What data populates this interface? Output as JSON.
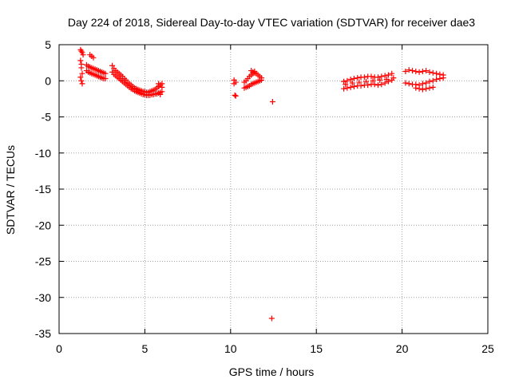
{
  "chart_data": {
    "type": "scatter",
    "title": "Day 224 of 2018, Sidereal Day-to-day VTEC variation (SDTVAR) for receiver dae3",
    "xlabel": "GPS time / hours",
    "ylabel": "SDTVAR / TECUs",
    "xlim": [
      0,
      25
    ],
    "ylim": [
      -35,
      5
    ],
    "xticks": [
      0,
      5,
      10,
      15,
      20,
      25
    ],
    "yticks": [
      5,
      0,
      -5,
      -10,
      -15,
      -20,
      -25,
      -30,
      -35
    ],
    "grid": true,
    "marker": "+",
    "color": "#ff0000",
    "series": [
      {
        "x": [
          1.25,
          1.3,
          1.35,
          1.4,
          1.25,
          1.3,
          1.3,
          1.35,
          1.25,
          1.3,
          1.35,
          1.8,
          1.9,
          2.0,
          1.6,
          1.7,
          1.8,
          1.9,
          2.0,
          2.1,
          2.2,
          2.3,
          2.4,
          2.5,
          2.6,
          2.7,
          1.6,
          1.7,
          1.8,
          1.9,
          2.0,
          2.1,
          2.2,
          2.3,
          2.4,
          2.5,
          2.6,
          2.7,
          3.1,
          3.2,
          3.3,
          3.4,
          3.5,
          3.6,
          3.7,
          3.8,
          3.9,
          4.0,
          4.1,
          4.2,
          4.3,
          4.4,
          4.5,
          4.6,
          4.7,
          4.8,
          4.9,
          5.0,
          5.1,
          5.2,
          5.3,
          5.4,
          5.5,
          5.6,
          5.7,
          5.8,
          5.9,
          6.0,
          3.1,
          3.2,
          3.3,
          3.4,
          3.5,
          3.6,
          3.7,
          3.8,
          3.9,
          4.0,
          4.1,
          4.2,
          4.3,
          4.4,
          4.5,
          4.6,
          4.7,
          4.8,
          4.9,
          5.0,
          5.1,
          5.2,
          5.3,
          5.4,
          5.5,
          5.6,
          5.7,
          5.8,
          5.9,
          6.0,
          5.8,
          5.9,
          6.0,
          5.9,
          10.2,
          10.3,
          10.2,
          10.25,
          10.3,
          10.8,
          10.9,
          11.0,
          11.1,
          11.2,
          11.3,
          11.4,
          11.5,
          11.6,
          11.7,
          11.8,
          10.8,
          10.9,
          11.0,
          11.1,
          11.2,
          11.3,
          11.4,
          11.5,
          11.6,
          11.7,
          11.8,
          11.2,
          11.3,
          11.4,
          12.45,
          12.4,
          16.6,
          16.8,
          17.0,
          17.2,
          17.4,
          17.6,
          17.8,
          18.0,
          18.2,
          18.4,
          18.6,
          18.8,
          19.0,
          19.2,
          19.4,
          16.6,
          16.8,
          17.0,
          17.2,
          17.4,
          17.6,
          17.8,
          18.0,
          18.2,
          18.4,
          18.6,
          18.8,
          19.0,
          19.2,
          19.4,
          16.7,
          17.1,
          17.5,
          17.9,
          18.3,
          18.7,
          19.1,
          19.5,
          20.2,
          20.4,
          20.6,
          20.8,
          21.0,
          21.2,
          21.4,
          21.6,
          21.8,
          22.0,
          22.2,
          22.4,
          20.2,
          20.4,
          20.6,
          20.8,
          21.0,
          21.2,
          21.4,
          21.6,
          21.8,
          22.0,
          22.2,
          22.4,
          20.8,
          21.0,
          21.2,
          21.4,
          21.6,
          21.8
        ],
        "y": [
          4.3,
          4.1,
          3.9,
          3.6,
          2.8,
          2.3,
          1.8,
          1.0,
          0.5,
          0.0,
          -0.4,
          3.6,
          3.4,
          3.2,
          2.2,
          2.0,
          1.9,
          1.8,
          1.7,
          1.6,
          1.5,
          1.4,
          1.3,
          1.2,
          1.1,
          1.0,
          1.4,
          1.2,
          1.1,
          1.0,
          0.9,
          0.8,
          0.7,
          0.6,
          0.5,
          0.4,
          0.3,
          0.3,
          2.1,
          1.7,
          1.4,
          1.2,
          1.0,
          0.8,
          0.6,
          0.3,
          0.1,
          -0.2,
          -0.4,
          -0.6,
          -0.8,
          -1.0,
          -1.1,
          -1.2,
          -1.3,
          -1.4,
          -1.5,
          -1.5,
          -1.6,
          -1.6,
          -1.5,
          -1.4,
          -1.3,
          -1.2,
          -1.0,
          -0.8,
          -0.6,
          -0.4,
          1.2,
          0.9,
          0.7,
          0.5,
          0.3,
          0.1,
          -0.1,
          -0.3,
          -0.5,
          -0.7,
          -0.9,
          -1.1,
          -1.2,
          -1.4,
          -1.5,
          -1.6,
          -1.7,
          -1.8,
          -1.9,
          -1.9,
          -2.0,
          -2.0,
          -2.0,
          -1.9,
          -1.9,
          -1.8,
          -1.8,
          -1.7,
          -1.6,
          -1.5,
          -0.4,
          -0.6,
          -0.9,
          -1.9,
          0.1,
          -0.2,
          -0.4,
          -2.0,
          -2.1,
          -0.2,
          0.0,
          0.3,
          0.6,
          0.8,
          1.0,
          1.1,
          1.0,
          0.8,
          0.6,
          0.4,
          -1.0,
          -0.9,
          -0.8,
          -0.7,
          -0.5,
          -0.4,
          -0.3,
          -0.2,
          -0.1,
          0.0,
          0.1,
          1.4,
          1.2,
          1.3,
          -2.9,
          -32.9,
          -0.1,
          0.0,
          0.2,
          0.3,
          0.4,
          0.5,
          0.5,
          0.6,
          0.6,
          0.5,
          0.5,
          0.6,
          0.7,
          0.8,
          1.0,
          -1.1,
          -1.0,
          -0.9,
          -0.8,
          -0.7,
          -0.7,
          -0.6,
          -0.6,
          -0.5,
          -0.5,
          -0.6,
          -0.5,
          -0.3,
          -0.1,
          0.1,
          -0.5,
          -0.3,
          -0.2,
          -0.1,
          0.0,
          0.1,
          0.2,
          0.4,
          1.3,
          1.5,
          1.4,
          1.3,
          1.2,
          1.3,
          1.4,
          1.2,
          1.1,
          1.0,
          0.9,
          0.8,
          -0.3,
          -0.4,
          -0.5,
          -0.5,
          -0.6,
          -0.4,
          -0.3,
          -0.1,
          0.0,
          0.2,
          0.3,
          0.4,
          -1.0,
          -1.1,
          -1.2,
          -1.1,
          -1.0,
          -0.9
        ]
      }
    ]
  }
}
